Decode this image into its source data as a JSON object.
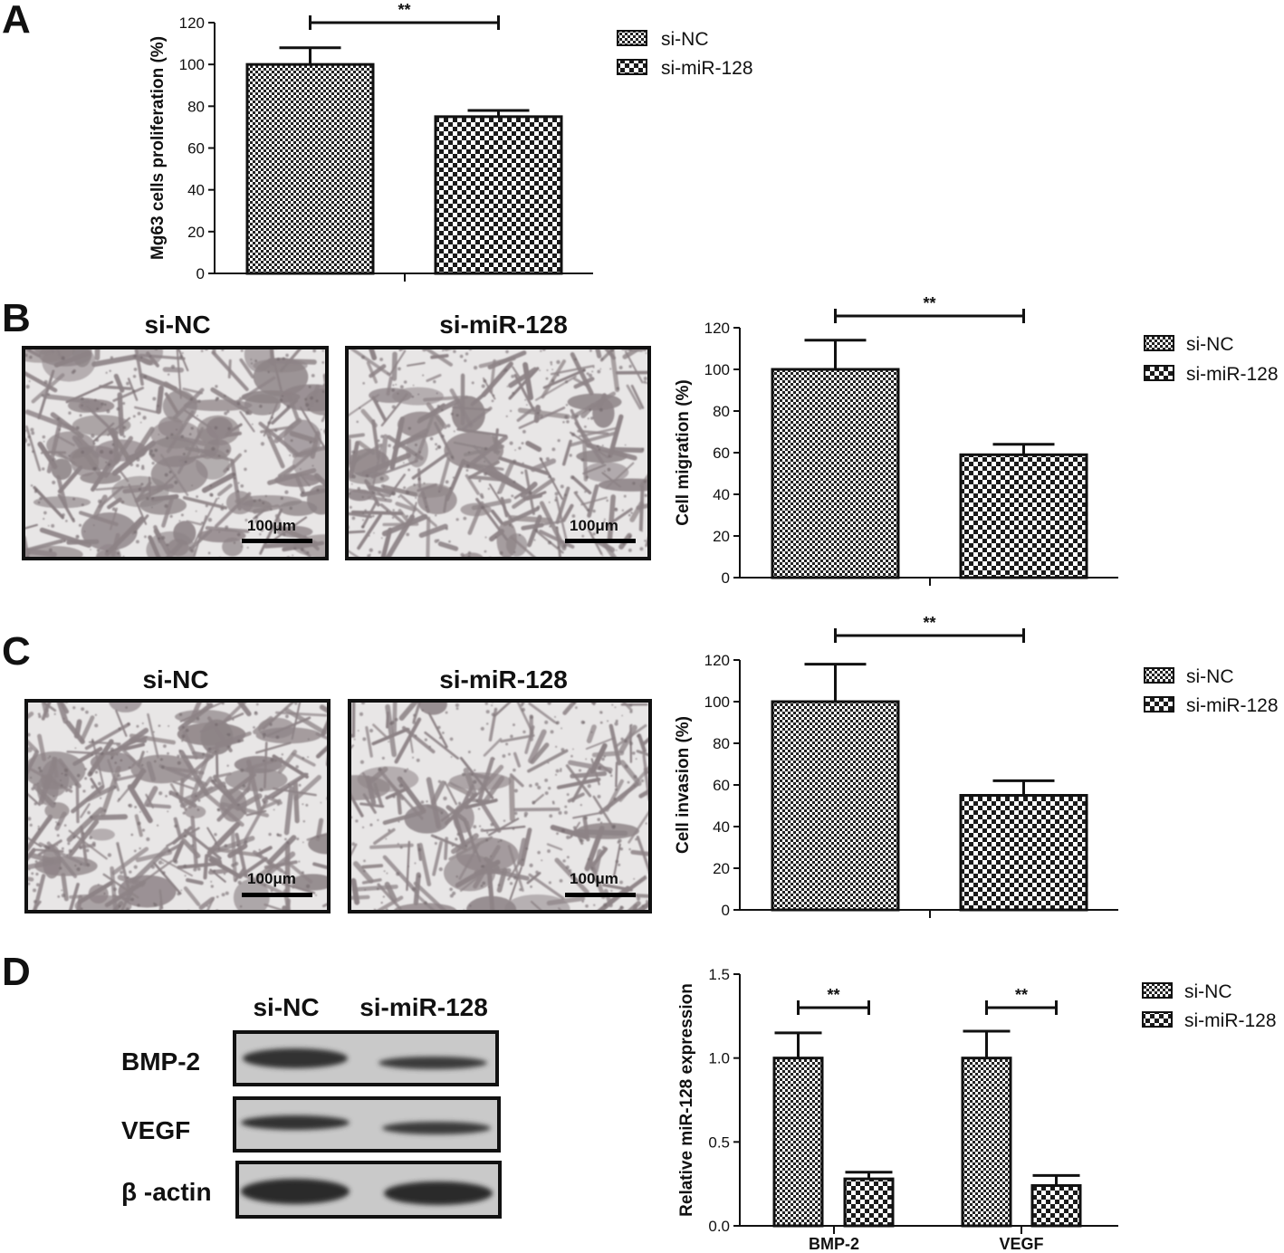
{
  "panels": {
    "a": {
      "letter": "A",
      "legend": [
        "si-NC",
        "si-miR-128"
      ],
      "significance": "**"
    },
    "b": {
      "letter": "B",
      "image_titles": [
        "si-NC",
        "si-miR-128"
      ],
      "scale_bar": "100μm",
      "legend": [
        "si-NC",
        "si-miR-128"
      ],
      "significance": "**"
    },
    "c": {
      "letter": "C",
      "image_titles": [
        "si-NC",
        "si-miR-128"
      ],
      "scale_bar": "100μm",
      "legend": [
        "si-NC",
        "si-miR-128"
      ],
      "significance": "**"
    },
    "d": {
      "letter": "D",
      "blot_columns": [
        "si-NC",
        "si-miR-128"
      ],
      "blot_rows": [
        "BMP-2",
        "VEGF",
        "β -actin"
      ],
      "legend": [
        "si-NC",
        "si-miR-128"
      ],
      "significance": [
        "**",
        "**"
      ]
    }
  },
  "colors": {
    "bar_outline": "#111111",
    "pattern_dark": "#222222",
    "micrograph_light": "#e8e6e6",
    "micrograph_cells": "#8d8386",
    "blot_bg": "#c9c9c9",
    "blot_band": "#303030"
  },
  "chart_data": [
    {
      "type": "bar",
      "categories": [
        "si-NC",
        "si-miR-128"
      ],
      "values": [
        100,
        75
      ],
      "errors": [
        8,
        3
      ],
      "ylabel": "Mg63 cells proliferation (%)",
      "ylim": [
        0,
        120
      ],
      "yticks": [
        "0",
        "20",
        "40",
        "60",
        "80",
        "100",
        "120"
      ],
      "significance": "**",
      "legend_position": "right"
    },
    {
      "type": "bar",
      "categories": [
        "si-NC",
        "si-miR-128"
      ],
      "values": [
        100,
        59
      ],
      "errors": [
        14,
        5
      ],
      "ylabel": "Cell migration (%)",
      "ylim": [
        0,
        120
      ],
      "yticks": [
        "0",
        "20",
        "40",
        "60",
        "80",
        "100",
        "120"
      ],
      "significance": "**",
      "legend_position": "right"
    },
    {
      "type": "bar",
      "categories": [
        "si-NC",
        "si-miR-128"
      ],
      "values": [
        100,
        55
      ],
      "errors": [
        18,
        7
      ],
      "ylabel": "Cell invasion (%)",
      "ylim": [
        0,
        120
      ],
      "yticks": [
        "0",
        "20",
        "40",
        "60",
        "80",
        "100",
        "120"
      ],
      "significance": "**",
      "legend_position": "right"
    },
    {
      "type": "bar",
      "categories": [
        "BMP-2",
        "VEGF"
      ],
      "series": [
        {
          "name": "si-NC",
          "values": [
            1.0,
            1.0
          ],
          "errors": [
            0.15,
            0.16
          ]
        },
        {
          "name": "si-miR-128",
          "values": [
            0.28,
            0.24
          ],
          "errors": [
            0.04,
            0.06
          ]
        }
      ],
      "ylabel": "Relative miR-128 expression",
      "ylim": [
        0,
        1.5
      ],
      "yticks": [
        "0.0",
        "0.5",
        "1.0",
        "1.5"
      ],
      "significance": [
        "**",
        "**"
      ],
      "legend_position": "right"
    }
  ]
}
